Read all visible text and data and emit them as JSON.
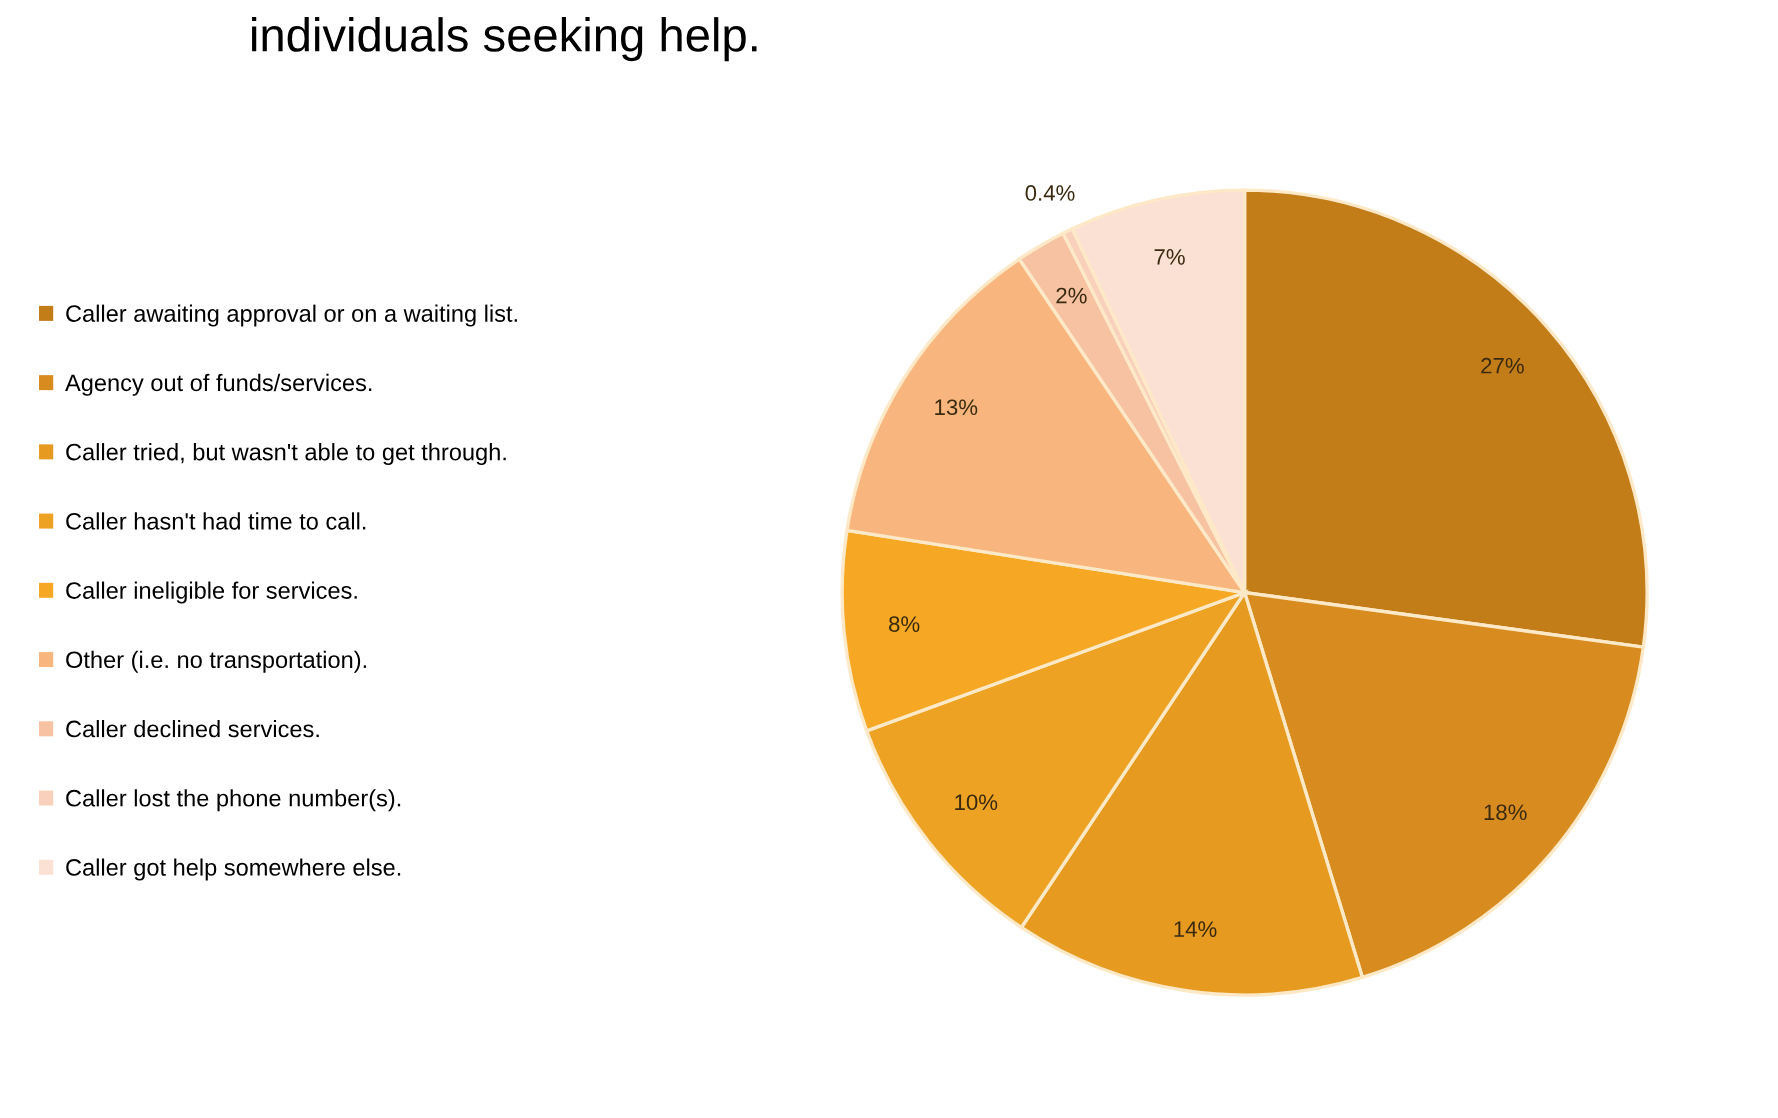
{
  "chart_data": {
    "type": "pie",
    "title": "individuals seeking help.",
    "categories": [
      "Caller awaiting approval or on a waiting list.",
      "Agency out of funds/services.",
      "Caller tried, but wasn't able to get through.",
      "Caller hasn't had time to call.",
      "Caller ineligible for services.",
      "Other (i.e. no transportation).",
      "Caller declined services.",
      "Caller lost the phone number(s).",
      "Caller got help somewhere else."
    ],
    "values": [
      27,
      18,
      14,
      10,
      8,
      13,
      2,
      0.4,
      7
    ],
    "value_labels": [
      "27%",
      "18%",
      "14%",
      "10%",
      "8%",
      "13%",
      "2%",
      "0.4%",
      "7%"
    ],
    "colors": [
      "#c27c18",
      "#d88b1e",
      "#e79a20",
      "#eea224",
      "#f6a824",
      "#f8b67e",
      "#f6c2a2",
      "#f8d0bc",
      "#fbe1d3"
    ],
    "legend": "left"
  }
}
